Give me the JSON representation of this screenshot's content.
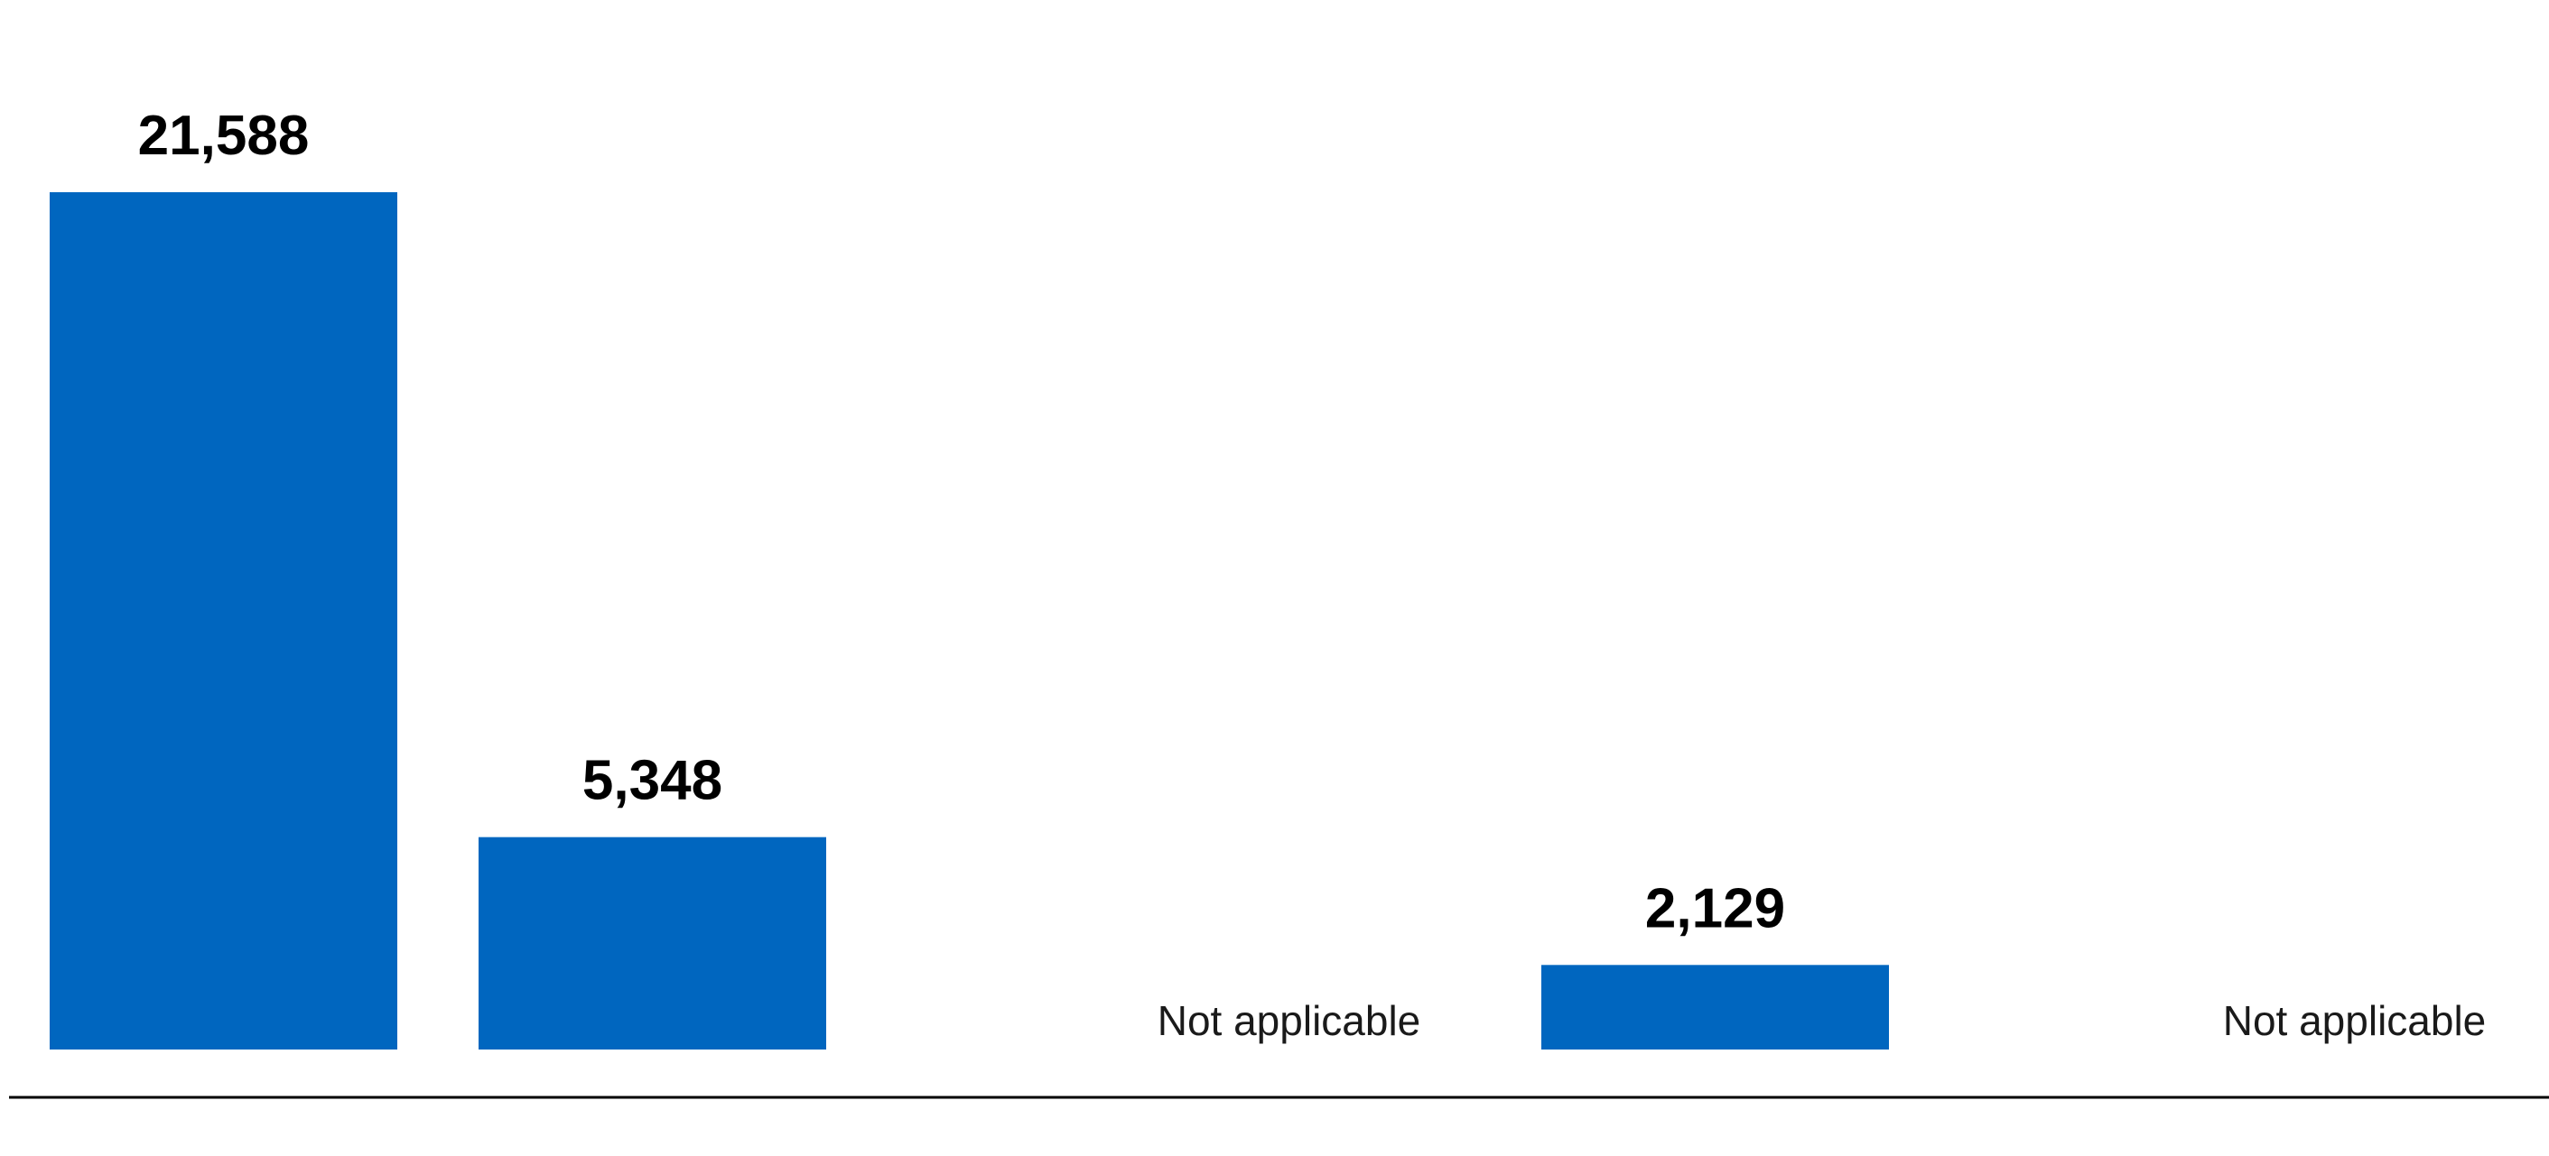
{
  "chart_data": {
    "type": "bar",
    "title": "",
    "xlabel": "",
    "ylabel": "",
    "ylim": [
      0,
      21588
    ],
    "grid": false,
    "legend": "none",
    "bar_color": "#0066bf",
    "baseline_color": "#000000",
    "categories": [
      "",
      "",
      "",
      "",
      ""
    ],
    "series": [
      {
        "values": [
          21588,
          5348,
          null,
          2129,
          null
        ]
      }
    ],
    "data_labels": [
      "21,588",
      "5,348",
      "Not applicable",
      "2,129",
      "Not applicable"
    ]
  }
}
